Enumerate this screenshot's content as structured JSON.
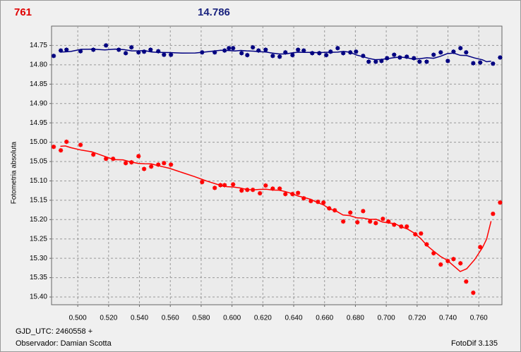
{
  "chart_data": {
    "type": "scatter",
    "title": "761",
    "title_color": "#e00000",
    "subtitle": "14.786",
    "subtitle_color": "#1a237e",
    "ylabel": "Fotometria absoluta",
    "annotations": [
      "GJD_UTC: 2460558 +",
      "Observador: Damian Scotta",
      "FotoDif 3.135"
    ],
    "xlim": [
      0.483,
      0.775
    ],
    "ylim": [
      14.7,
      15.42
    ],
    "y_inverted": true,
    "grid": true,
    "trend_line": true,
    "xticks": [
      {
        "value": 0.5,
        "label": "0.500"
      },
      {
        "value": 0.52,
        "label": "0.520"
      },
      {
        "value": 0.54,
        "label": "0.540"
      },
      {
        "value": 0.56,
        "label": "0.560"
      },
      {
        "value": 0.58,
        "label": "0.580"
      },
      {
        "value": 0.6,
        "label": "0.600"
      },
      {
        "value": 0.62,
        "label": "0.620"
      },
      {
        "value": 0.64,
        "label": "0.640"
      },
      {
        "value": 0.66,
        "label": "0.660"
      },
      {
        "value": 0.68,
        "label": "0.680"
      },
      {
        "value": 0.7,
        "label": "0.700"
      },
      {
        "value": 0.72,
        "label": "0.720"
      },
      {
        "value": 0.74,
        "label": "0.740"
      },
      {
        "value": 0.76,
        "label": "0.760"
      }
    ],
    "yticks": [
      14.75,
      {
        "value": 14.8,
        "label": "14.80"
      },
      14.85,
      {
        "value": 14.9,
        "label": "14.90"
      },
      14.95,
      {
        "value": 15.0,
        "label": "15.00"
      },
      15.05,
      {
        "value": 15.1,
        "label": "15.10"
      },
      15.15,
      {
        "value": 15.2,
        "label": "15.20"
      },
      15.25,
      {
        "value": 15.3,
        "label": "15.30"
      },
      15.35,
      {
        "value": 15.4,
        "label": "15.40"
      }
    ],
    "series": [
      {
        "color": "#000080",
        "x": [
          0.4844,
          0.489,
          0.4927,
          0.5018,
          0.5101,
          0.5183,
          0.5266,
          0.5311,
          0.5348,
          0.5394,
          0.543,
          0.5472,
          0.5522,
          0.5559,
          0.5604,
          0.5806,
          0.5888,
          0.5952,
          0.598,
          0.6007,
          0.6062,
          0.6099,
          0.6135,
          0.6172,
          0.6218,
          0.6264,
          0.6309,
          0.6346,
          0.6392,
          0.6428,
          0.6465,
          0.652,
          0.6566,
          0.6611,
          0.6639,
          0.6685,
          0.6721,
          0.6767,
          0.6804,
          0.685,
          0.6886,
          0.6932,
          0.6969,
          0.7005,
          0.7051,
          0.7088,
          0.7133,
          0.7179,
          0.7216,
          0.7262,
          0.7307,
          0.7353,
          0.7399,
          0.7436,
          0.7481,
          0.7518,
          0.7564,
          0.7609,
          0.7692,
          0.7738
        ],
        "values": [
          14.777,
          14.763,
          14.761,
          14.765,
          14.761,
          14.75,
          14.761,
          14.77,
          14.755,
          14.768,
          14.766,
          14.761,
          14.765,
          14.774,
          14.774,
          14.768,
          14.768,
          14.763,
          14.757,
          14.757,
          14.77,
          14.775,
          14.755,
          14.763,
          14.761,
          14.777,
          14.779,
          14.768,
          14.775,
          14.761,
          14.763,
          14.77,
          14.77,
          14.775,
          14.766,
          14.757,
          14.77,
          14.768,
          14.766,
          14.777,
          14.792,
          14.792,
          14.79,
          14.783,
          14.774,
          14.781,
          14.779,
          14.783,
          14.792,
          14.792,
          14.774,
          14.768,
          14.79,
          14.766,
          14.757,
          14.768,
          14.796,
          14.794,
          14.797,
          14.781
        ]
      },
      {
        "color": "#ff0000",
        "x": [
          0.4844,
          0.489,
          0.4927,
          0.5018,
          0.5101,
          0.5183,
          0.5229,
          0.5311,
          0.5348,
          0.5394,
          0.543,
          0.5476,
          0.5522,
          0.5559,
          0.5604,
          0.5806,
          0.5888,
          0.5925,
          0.5952,
          0.6007,
          0.6062,
          0.6099,
          0.6135,
          0.6181,
          0.6218,
          0.6264,
          0.6309,
          0.6346,
          0.6392,
          0.6428,
          0.6465,
          0.6511,
          0.6557,
          0.6593,
          0.663,
          0.6666,
          0.6721,
          0.6767,
          0.6813,
          0.685,
          0.6895,
          0.6932,
          0.6978,
          0.7014,
          0.7051,
          0.7097,
          0.7133,
          0.7188,
          0.7225,
          0.7262,
          0.7307,
          0.7353,
          0.7399,
          0.7436,
          0.7481,
          0.7518,
          0.7564,
          0.7609,
          0.7692,
          0.7738
        ],
        "values": [
          15.012,
          15.021,
          14.999,
          15.007,
          15.032,
          15.043,
          15.043,
          15.054,
          15.052,
          15.036,
          15.069,
          15.063,
          15.058,
          15.054,
          15.058,
          15.103,
          15.118,
          15.111,
          15.111,
          15.109,
          15.125,
          15.123,
          15.123,
          15.132,
          15.112,
          15.12,
          15.12,
          15.134,
          15.134,
          15.131,
          15.145,
          15.152,
          15.154,
          15.156,
          15.171,
          15.176,
          15.205,
          15.182,
          15.207,
          15.178,
          15.205,
          15.209,
          15.198,
          15.205,
          15.213,
          15.218,
          15.218,
          15.238,
          15.236,
          15.264,
          15.287,
          15.316,
          15.307,
          15.302,
          15.313,
          15.36,
          15.389,
          15.271,
          15.185,
          15.156
        ]
      }
    ]
  }
}
